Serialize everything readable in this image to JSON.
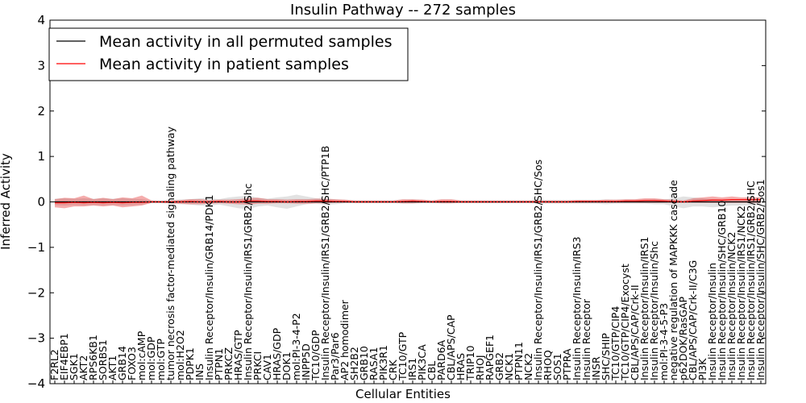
{
  "chart_data": {
    "type": "line",
    "title": "Insulin Pathway -- 272 samples",
    "xlabel": "Cellular Entities",
    "ylabel": "Inferred Activity",
    "ylim": [
      -4,
      4
    ],
    "yticks": [
      -4,
      -3,
      -2,
      -1,
      0,
      1,
      2,
      3,
      4
    ],
    "ytick_labels": [
      "−4",
      "−3",
      "−2",
      "−1",
      "0",
      "1",
      "2",
      "3",
      "4"
    ],
    "legend_position": "top-left",
    "categories": [
      "F2RL2",
      "EIF4EBP1",
      "SGK1",
      "AKT2",
      "RPS6KB1",
      "SORBS1",
      "AKT1",
      "GRB14",
      "FOXO3",
      "mol:cAMP",
      "mol:GDP",
      "mol:GTP",
      "tumor necrosis factor-mediated signaling pathway",
      "mol:H2O2",
      "PDPK1",
      "INS",
      "Insulin Receptor/Insulin/GRB14/PDK1",
      "PTPN1",
      "PRKCZ",
      "HRAS/GTP",
      "Insulin Receptor/Insulin/IRS1/GRB2/Shc",
      "PRKCI",
      "CAV1",
      "HRAS/GDP",
      "DOK1",
      "mol:PI-3-4-P2",
      "INPP5D",
      "TC10/GDP",
      "Insulin Receptor/Insulin/IRS1/GRB2/SHC/PTP1B",
      "Par3/Par6",
      "AP2 homodimer",
      "SH2B2",
      "GRB10",
      "RASA1",
      "PIK3R1",
      "CRK",
      "TC10/GTP",
      "IRS1",
      "PIK3CA",
      "CBL",
      "PARD6A",
      "CBL/APS/CAP",
      "HRAS",
      "TRIP10",
      "RHOJ",
      "RAPGEF1",
      "GRB2",
      "NCK1",
      "PTPN11",
      "NCK2",
      "Insulin Receptor/Insulin/IRS1/GRB2/SHC/Sos",
      "RHOQ",
      "SOS1",
      "PTPRA",
      "Insulin Receptor/Insulin/IRS3",
      "Insulin Receptor",
      "INSR",
      "SHC/SHIP",
      "TC10/GTP/CIP4",
      "TC10/GTP/CIP4/Exocyst",
      "CBL/APS/CAP/Crk-II",
      "Insulin Receptor/Insulin/IRS1",
      "Insulin Receptor/Insulin/Shc",
      "mol:PI-3-4-5-P3",
      "negative regulation of MAPKKK cascade",
      "p62DOK/RasGAP",
      "CBL/APS/CAP/Crk-II/C3G",
      "PI3K",
      "Insulin Receptor/Insulin",
      "Insulin Receptor/Insulin/SHC/GRB10",
      "Insulin Receptor/Insulin/NCK2",
      "Insulin Receptor/Insulin/IRS1/NCK2",
      "Insulin Receptor/Insulin/IRS1/GRB2/SHC",
      "Insulin Receptor/Insulin/SHC/GRB2/Sos1"
    ],
    "series": [
      {
        "name": "Mean activity in all permuted samples",
        "color": "#000000",
        "values": [
          0,
          0,
          0,
          0,
          0,
          0,
          0,
          0,
          0,
          0,
          0,
          0,
          0,
          0,
          0,
          0,
          0,
          0,
          0,
          0,
          0,
          0,
          0,
          0,
          0,
          0,
          0,
          0,
          0,
          0,
          0,
          0,
          0,
          0,
          0,
          0,
          0,
          0,
          0,
          0,
          0,
          0,
          0,
          0,
          0,
          0,
          0,
          0,
          0,
          0,
          0,
          0,
          0,
          0,
          0,
          0,
          0,
          0,
          0,
          0,
          0,
          0,
          0,
          0,
          0,
          0,
          0,
          0,
          0,
          0,
          0,
          0,
          0,
          0
        ],
        "band_low": [
          -0.07,
          -0.08,
          -0.07,
          -0.08,
          -0.07,
          -0.08,
          -0.07,
          -0.08,
          -0.07,
          -0.06,
          -0.03,
          -0.03,
          -0.04,
          -0.05,
          -0.06,
          -0.08,
          -0.08,
          -0.06,
          -0.1,
          -0.14,
          -0.16,
          -0.1,
          -0.08,
          -0.12,
          -0.15,
          -0.1,
          -0.05,
          -0.04,
          -0.06,
          -0.05,
          -0.03,
          -0.03,
          -0.03,
          -0.03,
          -0.03,
          -0.03,
          -0.04,
          -0.04,
          -0.03,
          -0.03,
          -0.03,
          -0.03,
          -0.03,
          -0.03,
          -0.03,
          -0.03,
          -0.03,
          -0.03,
          -0.03,
          -0.03,
          -0.04,
          -0.04,
          -0.04,
          -0.04,
          -0.04,
          -0.04,
          -0.04,
          -0.05,
          -0.04,
          -0.04,
          -0.04,
          -0.04,
          -0.05,
          -0.05,
          -0.1,
          -0.14,
          -0.1,
          -0.1,
          -0.12,
          -0.1,
          -0.08,
          -0.08,
          -0.08,
          -0.06
        ],
        "band_high": [
          0.07,
          0.08,
          0.07,
          0.08,
          0.07,
          0.08,
          0.07,
          0.08,
          0.07,
          0.06,
          0.03,
          0.03,
          0.04,
          0.05,
          0.06,
          0.08,
          0.08,
          0.06,
          0.1,
          0.12,
          0.14,
          0.09,
          0.07,
          0.1,
          0.12,
          0.16,
          0.12,
          0.08,
          0.07,
          0.05,
          0.03,
          0.03,
          0.03,
          0.03,
          0.03,
          0.03,
          0.04,
          0.04,
          0.03,
          0.03,
          0.03,
          0.03,
          0.03,
          0.03,
          0.03,
          0.03,
          0.03,
          0.03,
          0.03,
          0.03,
          0.04,
          0.04,
          0.04,
          0.04,
          0.04,
          0.04,
          0.04,
          0.05,
          0.04,
          0.04,
          0.04,
          0.04,
          0.05,
          0.05,
          0.08,
          0.12,
          0.1,
          0.08,
          0.06,
          0.05,
          0.05,
          0.05,
          0.05,
          0.04
        ]
      },
      {
        "name": "Mean activity in patient samples",
        "color": "#ff0000",
        "values": [
          -0.02,
          -0.02,
          -0.01,
          -0.02,
          -0.01,
          -0.02,
          -0.01,
          -0.02,
          -0.01,
          -0.01,
          0,
          0,
          0,
          0,
          0.01,
          0,
          0,
          0.01,
          0,
          0,
          0.02,
          0.02,
          0.01,
          0.01,
          0,
          0.01,
          0.01,
          0.02,
          0.02,
          0.01,
          0.01,
          0,
          0,
          0,
          0,
          0,
          0.01,
          0.02,
          0.01,
          0,
          0.01,
          0.01,
          0,
          0,
          0,
          0,
          0,
          0,
          0,
          0,
          0,
          0,
          0,
          0,
          0.01,
          0.01,
          0.01,
          0.01,
          0.01,
          0.02,
          0.02,
          0.03,
          0.03,
          0.02,
          0.01,
          0,
          0.02,
          0.03,
          0.04,
          0.04,
          0.05,
          0.05,
          0.05,
          0.05
        ],
        "band_low": [
          -0.12,
          -0.14,
          -0.1,
          -0.1,
          -0.08,
          -0.1,
          -0.08,
          -0.12,
          -0.1,
          -0.08,
          -0.02,
          -0.02,
          -0.03,
          -0.04,
          -0.05,
          -0.05,
          -0.04,
          -0.03,
          -0.04,
          -0.05,
          -0.06,
          -0.04,
          -0.04,
          -0.03,
          -0.03,
          -0.04,
          -0.04,
          -0.03,
          -0.03,
          -0.02,
          -0.02,
          -0.02,
          -0.02,
          -0.02,
          -0.02,
          -0.02,
          -0.03,
          -0.03,
          -0.02,
          -0.02,
          -0.03,
          -0.03,
          -0.02,
          -0.02,
          -0.02,
          -0.02,
          -0.02,
          -0.02,
          -0.02,
          -0.02,
          -0.02,
          -0.02,
          -0.02,
          -0.02,
          -0.02,
          -0.02,
          -0.02,
          -0.02,
          -0.02,
          -0.02,
          -0.02,
          -0.02,
          -0.02,
          -0.02,
          -0.02,
          -0.02,
          -0.02,
          -0.02,
          -0.02,
          -0.02,
          -0.02,
          -0.02,
          -0.02,
          -0.02
        ],
        "band_high": [
          0.06,
          0.09,
          0.08,
          0.14,
          0.06,
          0.09,
          0.06,
          0.1,
          0.08,
          0.14,
          0.03,
          0.02,
          0.03,
          0.04,
          0.06,
          0.06,
          0.04,
          0.05,
          0.05,
          0.06,
          0.08,
          0.09,
          0.06,
          0.06,
          0.05,
          0.06,
          0.06,
          0.07,
          0.07,
          0.06,
          0.05,
          0.03,
          0.03,
          0.03,
          0.03,
          0.03,
          0.06,
          0.06,
          0.05,
          0.03,
          0.06,
          0.06,
          0.03,
          0.03,
          0.03,
          0.03,
          0.03,
          0.03,
          0.03,
          0.03,
          0.03,
          0.03,
          0.03,
          0.03,
          0.04,
          0.04,
          0.04,
          0.05,
          0.05,
          0.06,
          0.06,
          0.08,
          0.08,
          0.06,
          0.05,
          0.03,
          0.08,
          0.1,
          0.12,
          0.1,
          0.12,
          0.1,
          0.1,
          0.1
        ]
      }
    ]
  }
}
